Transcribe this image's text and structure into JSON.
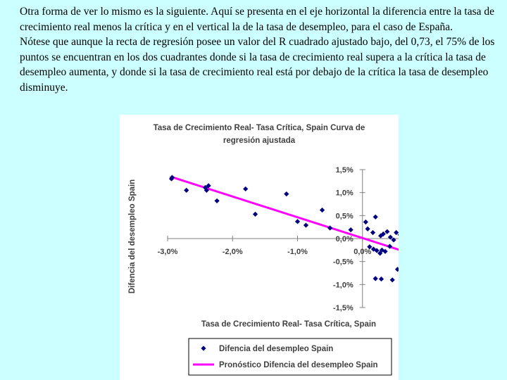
{
  "slide": {
    "paragraph_1": "Otra forma de ver lo mismo es la siguiente. Aquí se presenta en el eje horizontal la diferencia entre la tasa de crecimiento real menos la crítica y en el vertical la de la tasa de desempleo, para el caso de España.",
    "paragraph_2": "Nótese que aunque la recta de regresión posee un valor del R cuadrado ajustado bajo, del 0,73, el  75% de los puntos se encuentran en los dos cuadrantes donde si la tasa de crecimiento real supera a la crítica la tasa de desempleo aumenta, y donde si la tasa de crecimiento real está por debajo de la crítica la tasa de desempleo disminuye."
  },
  "chart_data": {
    "type": "scatter",
    "title_line1": "Tasa de Crecimiento Real- Tasa Crítica, Spain Curva de",
    "title_line2": "regresión ajustada",
    "xlabel": "Tasa de Crecimiento Real- Tasa Crítica, Spain",
    "ylabel": "Difencia del desempleo Spain",
    "xlim": [
      -3.0,
      1.0
    ],
    "ylim": [
      -1.5,
      1.5
    ],
    "x_ticks": [
      {
        "value": -3.0,
        "label": "-3,0%"
      },
      {
        "value": -2.0,
        "label": "-2,0%"
      },
      {
        "value": -1.0,
        "label": "-1,0%"
      },
      {
        "value": 0.0,
        "label": "0,0%"
      },
      {
        "value": 1.0,
        "label": "1,0%"
      }
    ],
    "y_ticks": [
      {
        "value": 1.5,
        "label": "1,5%"
      },
      {
        "value": 1.0,
        "label": "1,0%"
      },
      {
        "value": 0.5,
        "label": "0,5%"
      },
      {
        "value": 0.0,
        "label": "0,0%"
      },
      {
        "value": -0.5,
        "label": "-0,5%"
      },
      {
        "value": -1.0,
        "label": "-1,0%"
      },
      {
        "value": -1.5,
        "label": "-1,5%"
      }
    ],
    "grid": false,
    "legend_position": "bottom",
    "series": [
      {
        "name": "Difencia del desempleo Spain",
        "kind": "markers",
        "color": "#000080",
        "points": [
          {
            "x": -2.94,
            "y": 1.3
          },
          {
            "x": -2.93,
            "y": 1.33
          },
          {
            "x": -2.71,
            "y": 1.05
          },
          {
            "x": -2.42,
            "y": 1.11
          },
          {
            "x": -2.37,
            "y": 1.15
          },
          {
            "x": -2.4,
            "y": 1.05
          },
          {
            "x": -2.24,
            "y": 0.82
          },
          {
            "x": -1.8,
            "y": 1.08
          },
          {
            "x": -1.65,
            "y": 0.53
          },
          {
            "x": -1.17,
            "y": 0.97
          },
          {
            "x": -1.0,
            "y": 0.37
          },
          {
            "x": -0.87,
            "y": 0.29
          },
          {
            "x": -0.62,
            "y": 0.62
          },
          {
            "x": -0.5,
            "y": 0.23
          },
          {
            "x": -0.18,
            "y": 0.19
          },
          {
            "x": 0.05,
            "y": 0.36
          },
          {
            "x": 0.08,
            "y": 0.21
          },
          {
            "x": 0.16,
            "y": 0.13
          },
          {
            "x": 0.2,
            "y": 0.47
          },
          {
            "x": 0.28,
            "y": 0.06
          },
          {
            "x": 0.32,
            "y": 0.1
          },
          {
            "x": 0.38,
            "y": 0.15
          },
          {
            "x": 0.43,
            "y": 0.03
          },
          {
            "x": 0.48,
            "y": -0.03
          },
          {
            "x": 0.52,
            "y": 0.13
          },
          {
            "x": 0.58,
            "y": 0.08
          },
          {
            "x": 0.11,
            "y": -0.18
          },
          {
            "x": 0.17,
            "y": -0.23
          },
          {
            "x": 0.22,
            "y": -0.26
          },
          {
            "x": 0.27,
            "y": -0.32
          },
          {
            "x": 0.3,
            "y": -0.25
          },
          {
            "x": 0.35,
            "y": -0.28
          },
          {
            "x": 0.42,
            "y": -0.17
          },
          {
            "x": 0.2,
            "y": -0.87
          },
          {
            "x": 0.29,
            "y": -0.88
          },
          {
            "x": 0.46,
            "y": -0.9
          },
          {
            "x": 0.54,
            "y": -0.67
          }
        ]
      },
      {
        "name": "Pronóstico Difencia del desempleo Spain",
        "kind": "line",
        "color": "#ff00ff",
        "points": [
          {
            "x": -2.94,
            "y": 1.34
          },
          {
            "x": 0.6,
            "y": -0.26
          }
        ]
      }
    ]
  }
}
